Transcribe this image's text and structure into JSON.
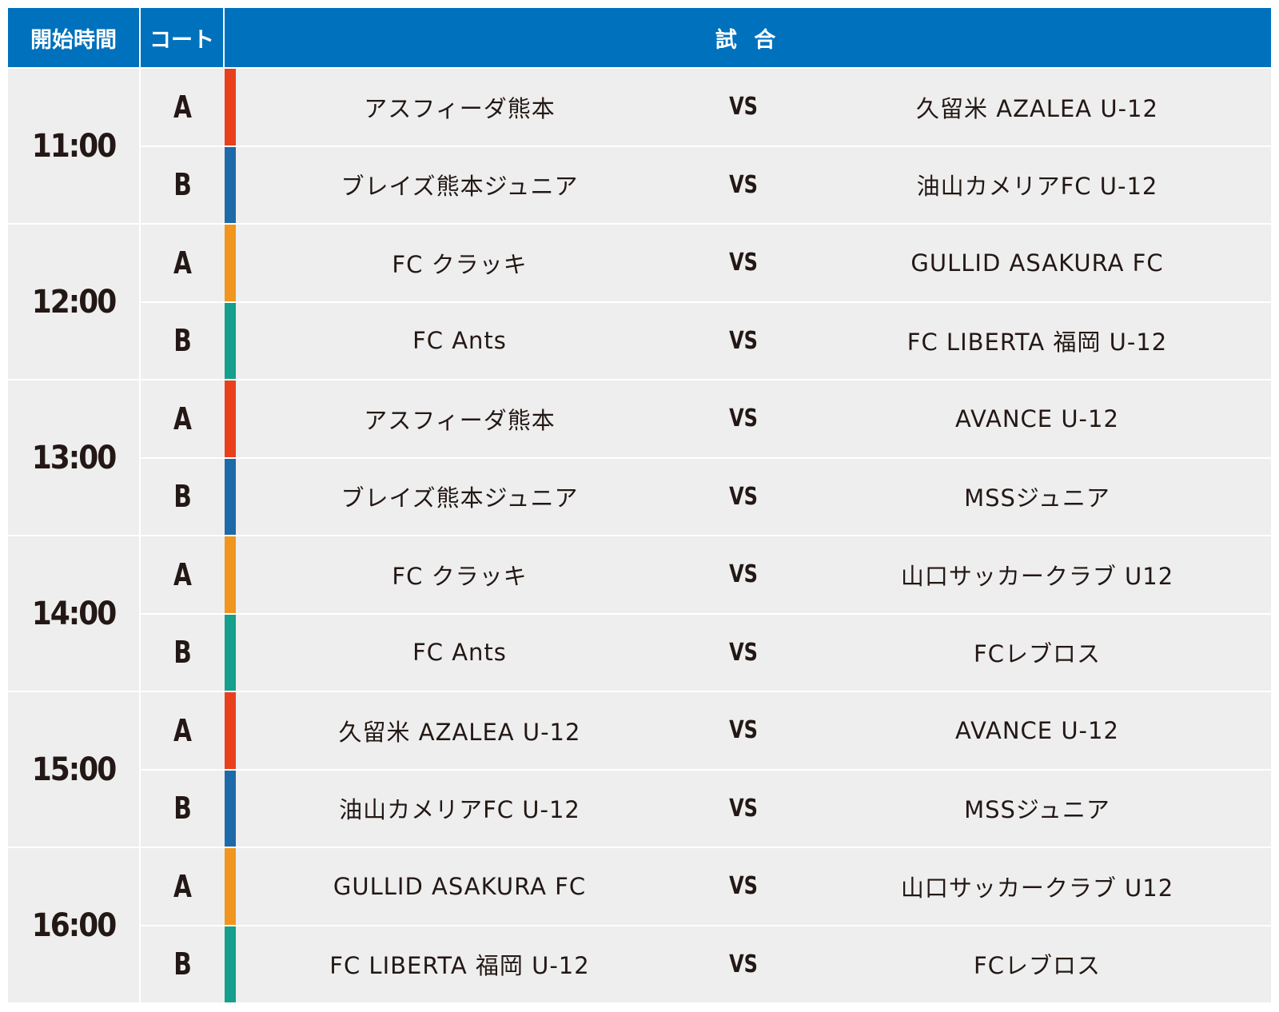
{
  "header": {
    "start_time": "開始時間",
    "court": "コート",
    "match": "試 合"
  },
  "colors": {
    "header_bg": "#0071bc",
    "row_bg": "#eeeeee",
    "stripe_red": "#e8401c",
    "stripe_blue": "#1e6aa8",
    "stripe_orange": "#f0961e",
    "stripe_teal": "#14a08c"
  },
  "slots": [
    {
      "time": "11:00",
      "matches": [
        {
          "court": "A",
          "home": "アスフィーダ熊本",
          "vs": "VS",
          "away": "久留米 AZALEA U-12",
          "stripe": "red"
        },
        {
          "court": "B",
          "home": "ブレイズ熊本ジュニア",
          "vs": "VS",
          "away": "油山カメリアFC U-12",
          "stripe": "blue"
        }
      ]
    },
    {
      "time": "12:00",
      "matches": [
        {
          "court": "A",
          "home": "FC クラッキ",
          "vs": "VS",
          "away": "GULLID ASAKURA FC",
          "stripe": "orange"
        },
        {
          "court": "B",
          "home": "FC Ants",
          "vs": "VS",
          "away": "FC LIBERTA 福岡 U-12",
          "stripe": "teal"
        }
      ]
    },
    {
      "time": "13:00",
      "matches": [
        {
          "court": "A",
          "home": "アスフィーダ熊本",
          "vs": "VS",
          "away": "AVANCE U-12",
          "stripe": "red"
        },
        {
          "court": "B",
          "home": "ブレイズ熊本ジュニア",
          "vs": "VS",
          "away": "MSSジュニア",
          "stripe": "blue"
        }
      ]
    },
    {
      "time": "14:00",
      "matches": [
        {
          "court": "A",
          "home": "FC クラッキ",
          "vs": "VS",
          "away": "山口サッカークラブ U12",
          "stripe": "orange"
        },
        {
          "court": "B",
          "home": "FC Ants",
          "vs": "VS",
          "away": "FCレブロス",
          "stripe": "teal"
        }
      ]
    },
    {
      "time": "15:00",
      "matches": [
        {
          "court": "A",
          "home": "久留米 AZALEA U-12",
          "vs": "VS",
          "away": "AVANCE U-12",
          "stripe": "red"
        },
        {
          "court": "B",
          "home": "油山カメリアFC U-12",
          "vs": "VS",
          "away": "MSSジュニア",
          "stripe": "blue"
        }
      ]
    },
    {
      "time": "16:00",
      "matches": [
        {
          "court": "A",
          "home": "GULLID ASAKURA FC",
          "vs": "VS",
          "away": "山口サッカークラブ U12",
          "stripe": "orange"
        },
        {
          "court": "B",
          "home": "FC LIBERTA 福岡 U-12",
          "vs": "VS",
          "away": "FCレブロス",
          "stripe": "teal"
        }
      ]
    }
  ]
}
